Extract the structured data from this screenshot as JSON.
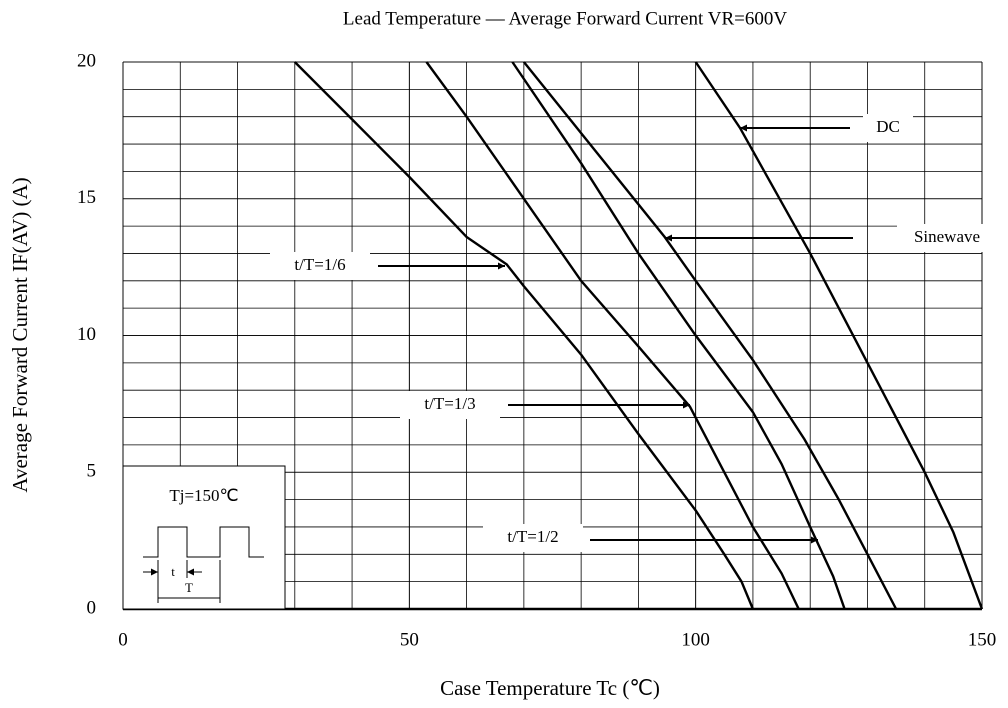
{
  "chart_data": {
    "type": "line",
    "title": "Lead Temperature — Average Forward Current   VR=600V",
    "x_label": "Case Temperature   Tc (℃)",
    "y_label": "Average Forward Current   IF(AV) (A)",
    "xlim": [
      0,
      150
    ],
    "xticks": [
      0,
      50,
      100,
      150
    ],
    "ylim": [
      0,
      20
    ],
    "yticks": [
      0,
      5,
      10,
      15,
      20
    ],
    "grid": true,
    "series": [
      {
        "name": "DC",
        "color": "#000000",
        "x": [
          100,
          107.7,
          120,
          130,
          140,
          145,
          150
        ],
        "values": [
          20,
          17.6,
          13,
          9,
          5,
          2.8,
          0
        ]
      },
      {
        "name": "Sinewave",
        "color": "#000000",
        "x": [
          70,
          80,
          94.6,
          100,
          110,
          119,
          125,
          130,
          135
        ],
        "values": [
          20,
          17.4,
          13.6,
          12,
          9.1,
          6.2,
          4,
          2,
          0
        ]
      },
      {
        "name": "t/T=1/6",
        "color": "#000000",
        "x": [
          30,
          40,
          50,
          60,
          67,
          70,
          80,
          90,
          100,
          105,
          108,
          110
        ],
        "values": [
          20,
          17.9,
          15.8,
          13.6,
          12.6,
          11.8,
          9.3,
          6.4,
          3.6,
          2,
          1,
          0
        ]
      },
      {
        "name": "t/T=1/3",
        "color": "#000000",
        "x": [
          53,
          60,
          70,
          80,
          90,
          99,
          105,
          110,
          115,
          118
        ],
        "values": [
          20,
          18,
          15,
          12,
          9.6,
          7.4,
          5,
          3,
          1.3,
          0
        ]
      },
      {
        "name": "t/T=1/2",
        "color": "#000000",
        "x": [
          68,
          80,
          90,
          100,
          110,
          115,
          120,
          124,
          126
        ],
        "values": [
          20,
          16.3,
          13,
          10,
          7.2,
          5.3,
          3,
          1.2,
          0
        ]
      }
    ],
    "inset": {
      "condition": "Tj=150℃",
      "t": "t",
      "T": "T"
    }
  }
}
